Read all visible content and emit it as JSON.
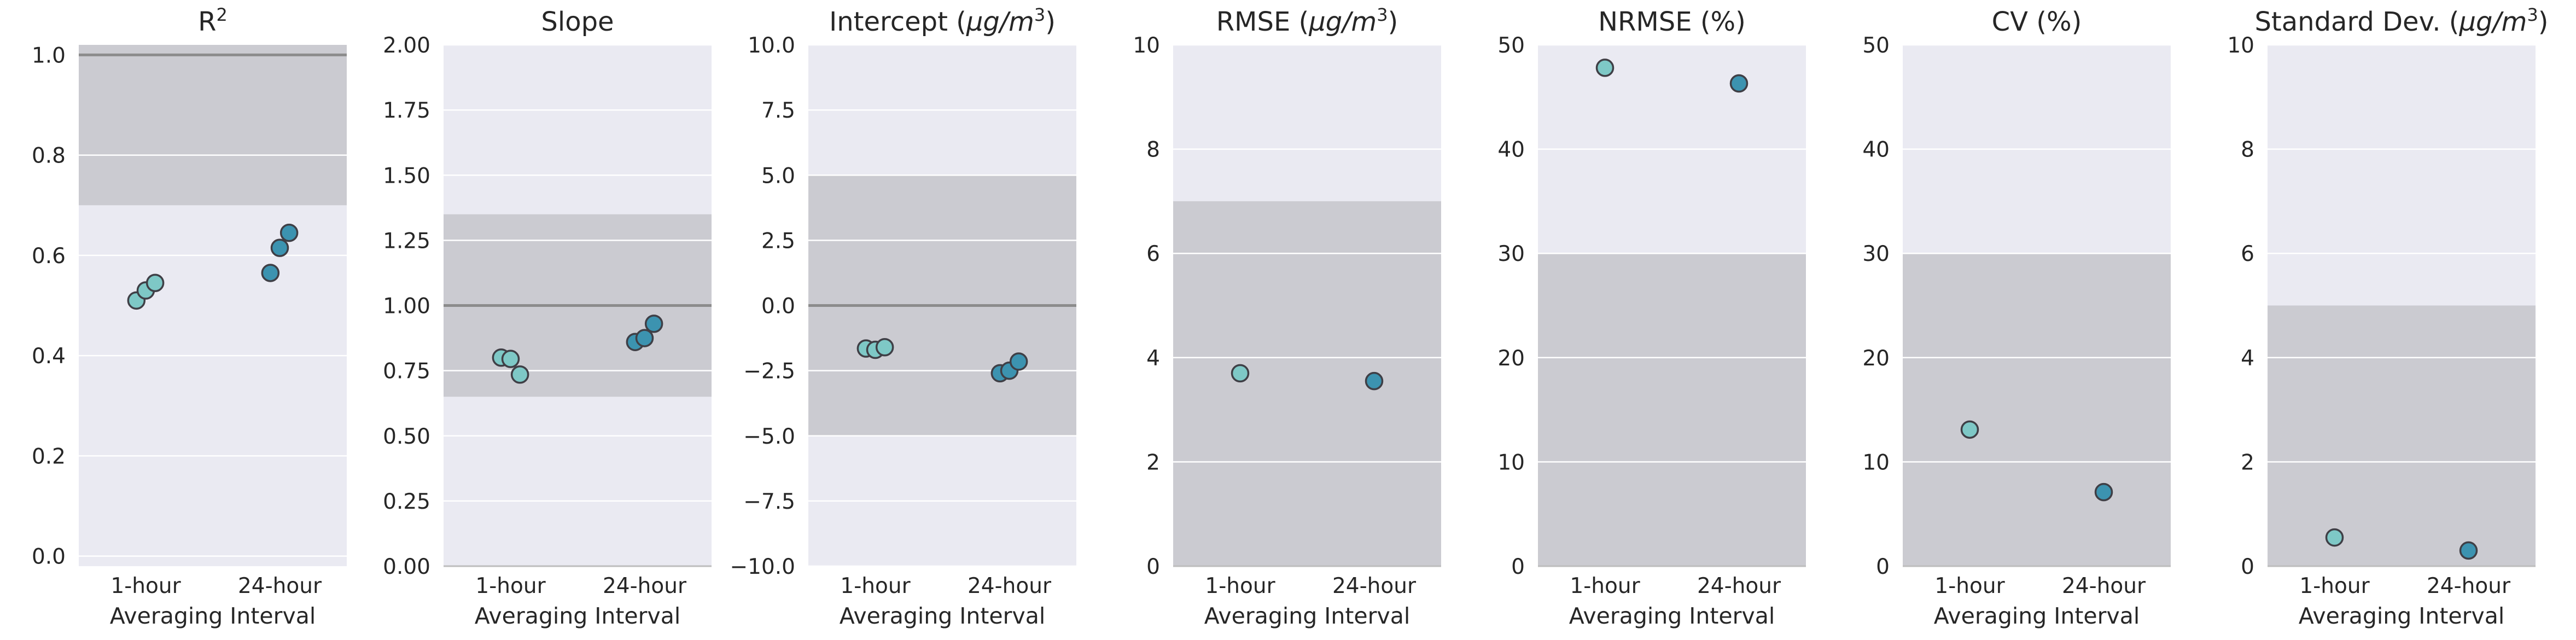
{
  "colors": {
    "panel_bg": "#eaeaf2",
    "target_band": "#cbcbd1",
    "ideal_line": "#8c8c8c",
    "grid": "#ffffff",
    "axis_line": "#bdbdbd",
    "marker_1h": "#7ec8c6",
    "marker_24h": "#3c93b0",
    "marker_edge": "#3f3f46"
  },
  "chart_data": [
    {
      "type": "scatter",
      "title": "R²",
      "title_main": "R",
      "title_sup": "2",
      "xlabel": "Averaging Interval",
      "categories": [
        "1-hour",
        "24-hour"
      ],
      "ylim": [
        -0.02,
        1.02
      ],
      "yticks": [
        0.0,
        0.2,
        0.4,
        0.6,
        0.8,
        1.0
      ],
      "ytick_labels": [
        "0.0",
        "0.2",
        "0.4",
        "0.6",
        "0.8",
        "1.0"
      ],
      "target_range": [
        0.7,
        1.02
      ],
      "ideal_value": 1.0,
      "points": [
        {
          "category": "1-hour",
          "value": 0.51
        },
        {
          "category": "1-hour",
          "value": 0.53
        },
        {
          "category": "1-hour",
          "value": 0.545
        },
        {
          "category": "24-hour",
          "value": 0.565
        },
        {
          "category": "24-hour",
          "value": 0.615
        },
        {
          "category": "24-hour",
          "value": 0.645
        }
      ]
    },
    {
      "type": "scatter",
      "title": "Slope",
      "xlabel": "Averaging Interval",
      "categories": [
        "1-hour",
        "24-hour"
      ],
      "ylim": [
        0.0,
        2.0
      ],
      "yticks": [
        0.0,
        0.25,
        0.5,
        0.75,
        1.0,
        1.25,
        1.5,
        1.75,
        2.0
      ],
      "ytick_labels": [
        "0.00",
        "0.25",
        "0.50",
        "0.75",
        "1.00",
        "1.25",
        "1.50",
        "1.75",
        "2.00"
      ],
      "target_range": [
        0.65,
        1.35
      ],
      "ideal_value": 1.0,
      "points": [
        {
          "category": "1-hour",
          "value": 0.8
        },
        {
          "category": "1-hour",
          "value": 0.795
        },
        {
          "category": "1-hour",
          "value": 0.735
        },
        {
          "category": "24-hour",
          "value": 0.86
        },
        {
          "category": "24-hour",
          "value": 0.875
        },
        {
          "category": "24-hour",
          "value": 0.93
        }
      ]
    },
    {
      "type": "scatter",
      "title": "Intercept (μg/m³)",
      "title_main": "Intercept (",
      "title_unit": "μg/m",
      "title_sup": "3",
      "title_end": ")",
      "xlabel": "Averaging Interval",
      "categories": [
        "1-hour",
        "24-hour"
      ],
      "ylim": [
        -10.0,
        10.0
      ],
      "yticks": [
        -10.0,
        -7.5,
        -5.0,
        -2.5,
        0.0,
        2.5,
        5.0,
        7.5,
        10.0
      ],
      "ytick_labels": [
        "−10.0",
        "−7.5",
        "−5.0",
        "−2.5",
        "0.0",
        "2.5",
        "5.0",
        "7.5",
        "10.0"
      ],
      "target_range": [
        -5.0,
        5.0
      ],
      "ideal_value": 0.0,
      "points": [
        {
          "category": "1-hour",
          "value": -1.65
        },
        {
          "category": "1-hour",
          "value": -1.7
        },
        {
          "category": "1-hour",
          "value": -1.6
        },
        {
          "category": "24-hour",
          "value": -2.6
        },
        {
          "category": "24-hour",
          "value": -2.5
        },
        {
          "category": "24-hour",
          "value": -2.15
        }
      ]
    },
    {
      "type": "scatter",
      "title": "RMSE (μg/m³)",
      "title_main": "RMSE (",
      "title_unit": "μg/m",
      "title_sup": "3",
      "title_end": ")",
      "xlabel": "Averaging Interval",
      "categories": [
        "1-hour",
        "24-hour"
      ],
      "ylim": [
        0,
        10
      ],
      "yticks": [
        0,
        2,
        4,
        6,
        8,
        10
      ],
      "ytick_labels": [
        "0",
        "2",
        "4",
        "6",
        "8",
        "10"
      ],
      "target_range": [
        0,
        7
      ],
      "points": [
        {
          "category": "1-hour",
          "value": 3.7
        },
        {
          "category": "24-hour",
          "value": 3.55
        }
      ]
    },
    {
      "type": "scatter",
      "title": "NRMSE (%)",
      "xlabel": "Averaging Interval",
      "categories": [
        "1-hour",
        "24-hour"
      ],
      "ylim": [
        0,
        50
      ],
      "yticks": [
        0,
        10,
        20,
        30,
        40,
        50
      ],
      "ytick_labels": [
        "0",
        "10",
        "20",
        "30",
        "40",
        "50"
      ],
      "target_range": [
        0,
        30
      ],
      "points": [
        {
          "category": "1-hour",
          "value": 47.8
        },
        {
          "category": "24-hour",
          "value": 46.3
        }
      ]
    },
    {
      "type": "scatter",
      "title": "CV (%)",
      "xlabel": "Averaging Interval",
      "categories": [
        "1-hour",
        "24-hour"
      ],
      "ylim": [
        0,
        50
      ],
      "yticks": [
        0,
        10,
        20,
        30,
        40,
        50
      ],
      "ytick_labels": [
        "0",
        "10",
        "20",
        "30",
        "40",
        "50"
      ],
      "target_range": [
        0,
        30
      ],
      "points": [
        {
          "category": "1-hour",
          "value": 13.1
        },
        {
          "category": "24-hour",
          "value": 7.1
        }
      ]
    },
    {
      "type": "scatter",
      "title": "Standard Dev. (μg/m³)",
      "title_main": "Standard Dev. (",
      "title_unit": "μg/m",
      "title_sup": "3",
      "title_end": ")",
      "xlabel": "Averaging Interval",
      "categories": [
        "1-hour",
        "24-hour"
      ],
      "ylim": [
        0,
        10
      ],
      "yticks": [
        0,
        2,
        4,
        6,
        8,
        10
      ],
      "ytick_labels": [
        "0",
        "2",
        "4",
        "6",
        "8",
        "10"
      ],
      "target_range": [
        0,
        5
      ],
      "points": [
        {
          "category": "1-hour",
          "value": 0.55
        },
        {
          "category": "24-hour",
          "value": 0.3
        }
      ]
    }
  ]
}
